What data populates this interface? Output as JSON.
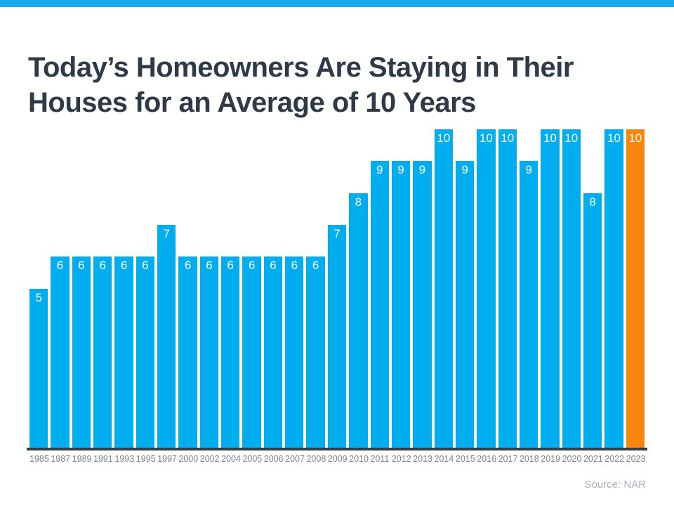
{
  "page": {
    "title_line1": "Today’s Homeowners Are Staying in Their",
    "title_line2": "Houses for an Average of 10 Years",
    "source": "Source: NAR"
  },
  "colors": {
    "top_accent": "#1BAAE9",
    "bar": "#00ADEE",
    "highlight_bar": "#F8860D",
    "title_text": "#2E3A45",
    "axis_line": "#333E48",
    "year_label": "#76838E",
    "source_text": "#A8B2BC",
    "value_label": "#FFFFFF"
  },
  "chart_data": {
    "type": "bar",
    "title": "Today’s Homeowners Are Staying in Their Houses for an Average of 10 Years",
    "xlabel": "",
    "ylabel": "",
    "ylim": [
      0,
      10
    ],
    "grid": false,
    "legend": false,
    "value_labels_position": "inside-top",
    "categories": [
      "1985",
      "1987",
      "1989",
      "1991",
      "1993",
      "1995",
      "1997",
      "2000",
      "2002",
      "2004",
      "2005",
      "2006",
      "2007",
      "2008",
      "2009",
      "2010",
      "2011",
      "2012",
      "2013",
      "2014",
      "2015",
      "2016",
      "2017",
      "2018",
      "2019",
      "2020",
      "2021",
      "2022",
      "2023"
    ],
    "values": [
      5,
      6,
      6,
      6,
      6,
      6,
      7,
      6,
      6,
      6,
      6,
      6,
      6,
      6,
      7,
      8,
      9,
      9,
      9,
      10,
      9,
      10,
      10,
      9,
      10,
      10,
      8,
      10,
      10
    ],
    "bar_color": "#00ADEE",
    "highlight_index": 28,
    "highlight_color": "#F8860D",
    "source": "Source: NAR"
  }
}
